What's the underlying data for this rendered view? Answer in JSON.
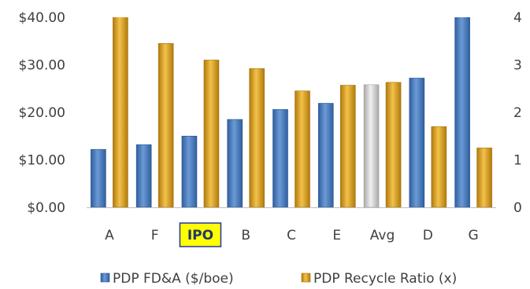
{
  "chart_data": {
    "type": "bar",
    "categories": [
      "A",
      "F",
      "IPO",
      "B",
      "C",
      "E",
      "Avg",
      "D",
      "G"
    ],
    "highlighted_category": "IPO",
    "series": [
      {
        "name": "PDP FD&A ($/boe)",
        "axis": "left",
        "values": [
          12.2,
          13.2,
          15.0,
          18.5,
          20.6,
          21.9,
          25.8,
          27.2,
          41.0
        ],
        "color": "#4a7fc1"
      },
      {
        "name": "PDP Recycle Ratio (x)",
        "axis": "right",
        "values": [
          4.05,
          3.45,
          3.1,
          2.92,
          2.45,
          2.57,
          2.63,
          1.7,
          1.25
        ],
        "color": "#e0a31c"
      }
    ],
    "average_bar_color": "#d4d4d4",
    "highlight_box_color": "#ffff00",
    "highlight_border_color": "#2233aa",
    "left_axis": {
      "ticks": [
        "$0.00",
        "$10.00",
        "$20.00",
        "$30.00",
        "$40.00"
      ],
      "ylim": [
        0,
        40
      ]
    },
    "right_axis": {
      "ticks": [
        "0",
        "1",
        "2",
        "3",
        "4"
      ],
      "ylim": [
        0,
        4
      ]
    },
    "title": "",
    "xlabel": "",
    "ylabel": "",
    "grid": false,
    "legend_position": "bottom"
  }
}
